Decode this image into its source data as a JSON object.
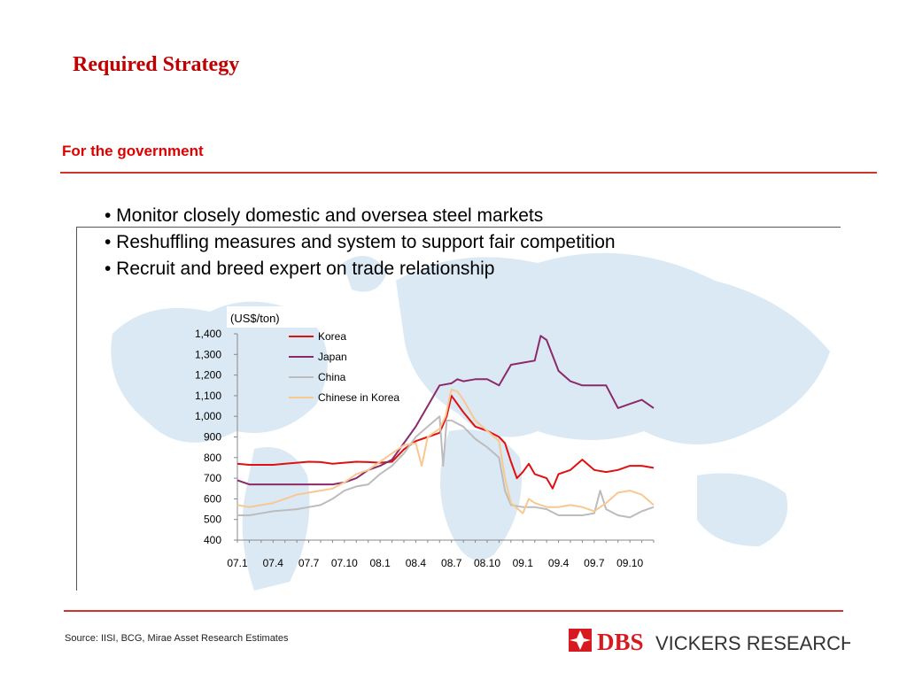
{
  "slide": {
    "title": "Required Strategy",
    "subtitle": "For the government",
    "bullets": [
      "• Monitor closely domestic and oversea steel markets",
      "• Reshuffling measures and system to support fair competition",
      "• Recruit and breed expert on trade relationship"
    ],
    "source": "Source: IISI, BCG, Mirae Asset Research Estimates",
    "logo": {
      "brand": "DBS",
      "suffix": "VICKERS RESEARCH"
    },
    "colors": {
      "accent": "#c00000",
      "rule": "#d0352d",
      "map": "#dbe9f4"
    }
  },
  "chart_data": {
    "type": "line",
    "unit_label": "(US$/ton)",
    "ylim": [
      400,
      1400
    ],
    "yticks": [
      "1,400",
      "1,300",
      "1,200",
      "1,100",
      "1,000",
      "900",
      "800",
      "700",
      "600",
      "500",
      "400"
    ],
    "xticks": [
      "07.1",
      "07.4",
      "07.7",
      "07.10",
      "08.1",
      "08.4",
      "08.7",
      "08.10",
      "09.1",
      "09.4",
      "09.7",
      "09.10"
    ],
    "xtick_positions": [
      0,
      3,
      6,
      9,
      12,
      15,
      18,
      21,
      24,
      27,
      30,
      33
    ],
    "x_range": [
      0,
      35
    ],
    "legend_position": "top-center",
    "series": [
      {
        "name": "Korea",
        "color": "#e01010",
        "points": [
          [
            0,
            770
          ],
          [
            1,
            765
          ],
          [
            2,
            765
          ],
          [
            3,
            765
          ],
          [
            4,
            770
          ],
          [
            5,
            775
          ],
          [
            6,
            780
          ],
          [
            7,
            778
          ],
          [
            8,
            770
          ],
          [
            9,
            775
          ],
          [
            10,
            780
          ],
          [
            11,
            778
          ],
          [
            12,
            775
          ],
          [
            13,
            780
          ],
          [
            14,
            840
          ],
          [
            15,
            880
          ],
          [
            16,
            900
          ],
          [
            17,
            920
          ],
          [
            17.6,
            1000
          ],
          [
            18,
            1100
          ],
          [
            18.5,
            1060
          ],
          [
            19,
            1020
          ],
          [
            20,
            950
          ],
          [
            21,
            930
          ],
          [
            22,
            900
          ],
          [
            22.5,
            870
          ],
          [
            23,
            780
          ],
          [
            23.5,
            700
          ],
          [
            24,
            730
          ],
          [
            24.5,
            770
          ],
          [
            25,
            720
          ],
          [
            26,
            700
          ],
          [
            26.5,
            650
          ],
          [
            27,
            720
          ],
          [
            28,
            740
          ],
          [
            29,
            790
          ],
          [
            30,
            740
          ],
          [
            31,
            730
          ],
          [
            32,
            740
          ],
          [
            33,
            760
          ],
          [
            34,
            760
          ],
          [
            35,
            750
          ]
        ]
      },
      {
        "name": "Japan",
        "color": "#8b2a6a",
        "points": [
          [
            0,
            690
          ],
          [
            1,
            670
          ],
          [
            2,
            670
          ],
          [
            3,
            670
          ],
          [
            4,
            670
          ],
          [
            5,
            670
          ],
          [
            6,
            670
          ],
          [
            7,
            670
          ],
          [
            8,
            670
          ],
          [
            9,
            680
          ],
          [
            10,
            700
          ],
          [
            11,
            740
          ],
          [
            12,
            760
          ],
          [
            13,
            790
          ],
          [
            14,
            870
          ],
          [
            15,
            950
          ],
          [
            16,
            1050
          ],
          [
            17,
            1150
          ],
          [
            18,
            1160
          ],
          [
            18.5,
            1180
          ],
          [
            19,
            1170
          ],
          [
            20,
            1180
          ],
          [
            21,
            1180
          ],
          [
            22,
            1150
          ],
          [
            23,
            1250
          ],
          [
            24,
            1260
          ],
          [
            25,
            1270
          ],
          [
            25.5,
            1390
          ],
          [
            26,
            1370
          ],
          [
            27,
            1220
          ],
          [
            28,
            1170
          ],
          [
            29,
            1150
          ],
          [
            30,
            1150
          ],
          [
            31,
            1150
          ],
          [
            32,
            1040
          ],
          [
            33,
            1060
          ],
          [
            34,
            1080
          ],
          [
            35,
            1040
          ]
        ]
      },
      {
        "name": "China",
        "color": "#bcbcbc",
        "points": [
          [
            0,
            520
          ],
          [
            1,
            520
          ],
          [
            2,
            530
          ],
          [
            3,
            540
          ],
          [
            4,
            545
          ],
          [
            5,
            550
          ],
          [
            6,
            560
          ],
          [
            7,
            570
          ],
          [
            8,
            600
          ],
          [
            9,
            640
          ],
          [
            10,
            660
          ],
          [
            11,
            670
          ],
          [
            12,
            720
          ],
          [
            13,
            760
          ],
          [
            14,
            820
          ],
          [
            15,
            900
          ],
          [
            16,
            950
          ],
          [
            17,
            1000
          ],
          [
            17.3,
            760
          ],
          [
            17.6,
            980
          ],
          [
            18,
            980
          ],
          [
            19,
            950
          ],
          [
            20,
            890
          ],
          [
            21,
            850
          ],
          [
            22,
            800
          ],
          [
            22.5,
            640
          ],
          [
            23,
            570
          ],
          [
            24,
            560
          ],
          [
            25,
            560
          ],
          [
            26,
            550
          ],
          [
            27,
            520
          ],
          [
            28,
            520
          ],
          [
            29,
            520
          ],
          [
            30,
            530
          ],
          [
            30.5,
            640
          ],
          [
            31,
            550
          ],
          [
            32,
            520
          ],
          [
            33,
            510
          ],
          [
            34,
            540
          ],
          [
            35,
            560
          ]
        ]
      },
      {
        "name": "Chinese in Korea",
        "color": "#f8c890",
        "points": [
          [
            0,
            570
          ],
          [
            1,
            560
          ],
          [
            2,
            570
          ],
          [
            3,
            580
          ],
          [
            4,
            600
          ],
          [
            5,
            620
          ],
          [
            6,
            630
          ],
          [
            7,
            640
          ],
          [
            8,
            650
          ],
          [
            9,
            680
          ],
          [
            10,
            720
          ],
          [
            11,
            740
          ],
          [
            12,
            780
          ],
          [
            13,
            820
          ],
          [
            14,
            860
          ],
          [
            15,
            870
          ],
          [
            15.5,
            760
          ],
          [
            16,
            900
          ],
          [
            17,
            940
          ],
          [
            17.5,
            1000
          ],
          [
            18,
            1130
          ],
          [
            18.5,
            1120
          ],
          [
            19,
            1080
          ],
          [
            20,
            980
          ],
          [
            21,
            930
          ],
          [
            22,
            880
          ],
          [
            22.5,
            700
          ],
          [
            23,
            580
          ],
          [
            24,
            530
          ],
          [
            24.5,
            600
          ],
          [
            25,
            580
          ],
          [
            26,
            560
          ],
          [
            27,
            560
          ],
          [
            28,
            570
          ],
          [
            29,
            560
          ],
          [
            30,
            540
          ],
          [
            31,
            580
          ],
          [
            32,
            630
          ],
          [
            33,
            640
          ],
          [
            34,
            620
          ],
          [
            35,
            570
          ]
        ]
      }
    ]
  }
}
